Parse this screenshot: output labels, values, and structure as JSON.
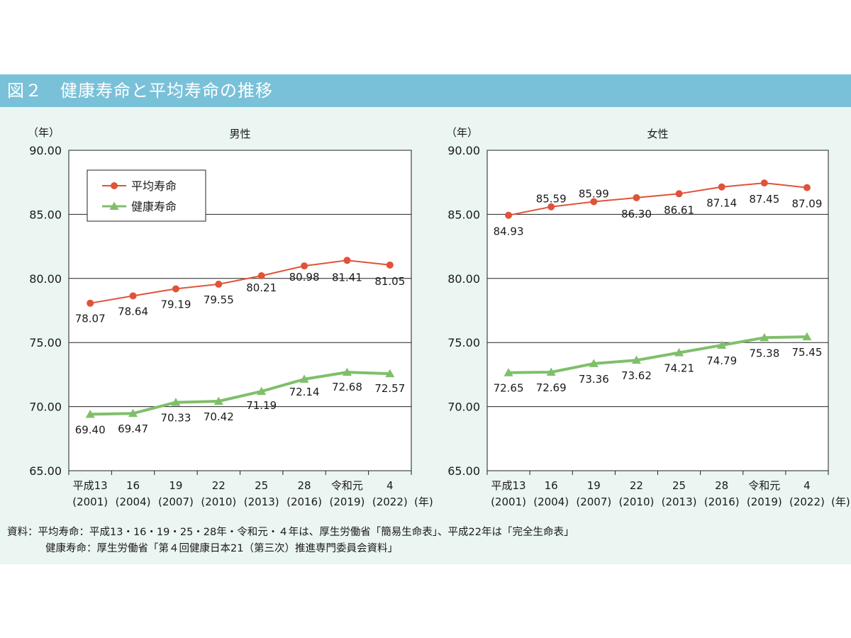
{
  "figure_title": "図２　健康寿命と平均寿命の推移",
  "source_notes": [
    "資料：平均寿命：平成13・16・19・25・28年・令和元・４年は、厚生労働省「簡易生命表」、平成22年は「完全生命表」",
    "健康寿命：厚生労働省「第４回健康日本21（第三次）推進専門委員会資料」"
  ],
  "colors": {
    "life_expectancy": "#e0533a",
    "healthy_life_expectancy": "#7fbf6a",
    "title_bar": "#79c1d8",
    "panel": "#ebf5f2"
  },
  "chart_data": [
    {
      "type": "line",
      "title": "男性",
      "y_unit": "（年）",
      "x_unit": "(年)",
      "ylim": [
        65,
        90
      ],
      "yticks": [
        "90.00",
        "85.00",
        "80.00",
        "75.00",
        "70.00",
        "65.00"
      ],
      "categories": [
        "平成13",
        "16",
        "19",
        "22",
        "25",
        "28",
        "令和元",
        "4"
      ],
      "category_years": [
        "(2001)",
        "(2004)",
        "(2007)",
        "(2010)",
        "(2013)",
        "(2016)",
        "(2019)",
        "(2022)"
      ],
      "grid": "horizontal",
      "legend": "top-left",
      "series": [
        {
          "name": "平均寿命",
          "marker": "circle",
          "values": [
            78.07,
            78.64,
            79.19,
            79.55,
            80.21,
            80.98,
            81.41,
            81.05
          ],
          "labels": [
            "78.07",
            "78.64",
            "79.19",
            "79.55",
            "80.21",
            "80.98",
            "81.41",
            "81.05"
          ]
        },
        {
          "name": "健康寿命",
          "marker": "triangle",
          "values": [
            69.4,
            69.47,
            70.33,
            70.42,
            71.19,
            72.14,
            72.68,
            72.57
          ],
          "labels": [
            "69.40",
            "69.47",
            "70.33",
            "70.42",
            "71.19",
            "72.14",
            "72.68",
            "72.57"
          ]
        }
      ]
    },
    {
      "type": "line",
      "title": "女性",
      "y_unit": "（年）",
      "x_unit": "(年)",
      "ylim": [
        65,
        90
      ],
      "yticks": [
        "90.00",
        "85.00",
        "80.00",
        "75.00",
        "70.00",
        "65.00"
      ],
      "categories": [
        "平成13",
        "16",
        "19",
        "22",
        "25",
        "28",
        "令和元",
        "4"
      ],
      "category_years": [
        "(2001)",
        "(2004)",
        "(2007)",
        "(2010)",
        "(2013)",
        "(2016)",
        "(2019)",
        "(2022)"
      ],
      "grid": "horizontal",
      "series": [
        {
          "name": "平均寿命",
          "marker": "circle",
          "values": [
            84.93,
            85.59,
            85.99,
            86.3,
            86.61,
            87.14,
            87.45,
            87.09
          ],
          "labels": [
            "84.93",
            "85.59",
            "85.99",
            "86.30",
            "86.61",
            "87.14",
            "87.45",
            "87.09"
          ]
        },
        {
          "name": "健康寿命",
          "marker": "triangle",
          "values": [
            72.65,
            72.69,
            73.36,
            73.62,
            74.21,
            74.79,
            75.38,
            75.45
          ],
          "labels": [
            "72.65",
            "72.69",
            "73.36",
            "73.62",
            "74.21",
            "74.79",
            "75.38",
            "75.45"
          ]
        }
      ]
    }
  ]
}
